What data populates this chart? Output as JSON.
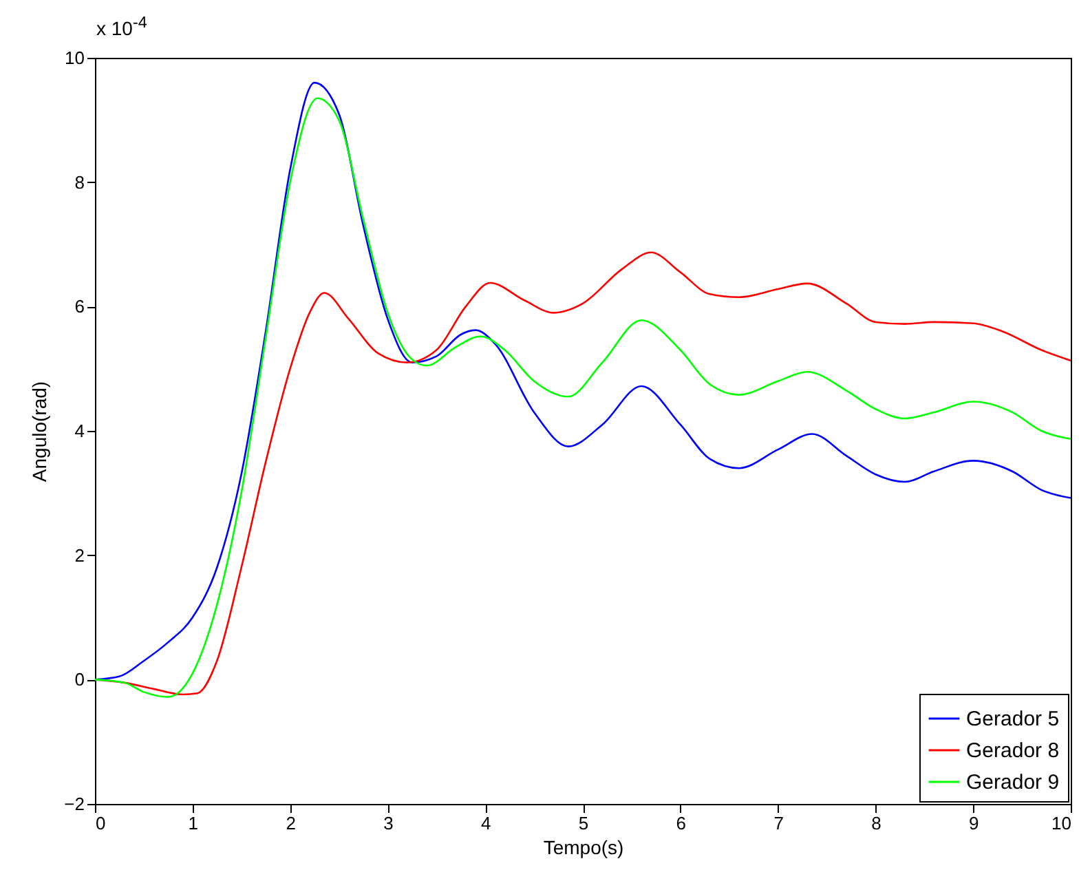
{
  "chart_data": {
    "type": "line",
    "xlabel": "Tempo(s)",
    "ylabel": "Angulo(rad)",
    "annotations": [
      "x 10$^{-4}$"
    ],
    "xlim": [
      0,
      10
    ],
    "xticks": [
      0,
      1,
      2,
      3,
      4,
      5,
      6,
      7,
      8,
      9,
      10
    ],
    "ylim": [
      -2,
      10
    ],
    "yticks": [
      -2,
      0,
      2,
      4,
      6,
      8,
      10
    ],
    "grid": false,
    "legend": "bottom right",
    "series": [
      {
        "name": "Gerador 5",
        "color": "#0000ff",
        "x": [
          0,
          0.25,
          0.5,
          0.75,
          1.0,
          1.25,
          1.5,
          1.75,
          2.0,
          2.25,
          2.5,
          2.75,
          3.0,
          3.25,
          3.5,
          3.75,
          3.9,
          4.1,
          4.5,
          4.85,
          5.2,
          5.6,
          6.0,
          6.3,
          6.6,
          7.0,
          7.35,
          7.7,
          8.0,
          8.3,
          8.6,
          9.0,
          9.4,
          9.7,
          10
        ],
        "values": [
          0,
          0.05,
          0.3,
          0.6,
          1.0,
          1.8,
          3.3,
          5.6,
          8.2,
          9.6,
          9.1,
          7.3,
          5.8,
          5.1,
          5.2,
          5.55,
          5.62,
          5.4,
          4.3,
          3.75,
          4.1,
          4.72,
          4.1,
          3.55,
          3.4,
          3.7,
          3.95,
          3.6,
          3.3,
          3.18,
          3.35,
          3.52,
          3.35,
          3.05,
          2.92
        ]
      },
      {
        "name": "Gerador 8",
        "color": "#ff0000",
        "x": [
          0,
          0.3,
          0.6,
          0.9,
          1.05,
          1.25,
          1.5,
          1.75,
          2.0,
          2.2,
          2.35,
          2.6,
          2.9,
          3.2,
          3.5,
          3.8,
          4.05,
          4.4,
          4.7,
          5.0,
          5.4,
          5.7,
          6.0,
          6.3,
          6.6,
          7.0,
          7.3,
          7.7,
          8.0,
          8.3,
          8.6,
          9.0,
          9.3,
          9.7,
          10
        ],
        "values": [
          0,
          -0.05,
          -0.15,
          -0.24,
          -0.22,
          0.3,
          1.8,
          3.5,
          5.0,
          5.9,
          6.22,
          5.8,
          5.25,
          5.1,
          5.3,
          6.0,
          6.38,
          6.1,
          5.9,
          6.05,
          6.6,
          6.87,
          6.55,
          6.2,
          6.15,
          6.28,
          6.37,
          6.05,
          5.75,
          5.72,
          5.75,
          5.73,
          5.6,
          5.3,
          5.13
        ]
      },
      {
        "name": "Gerador 9",
        "color": "#00ff00",
        "x": [
          0,
          0.3,
          0.5,
          0.75,
          1.0,
          1.25,
          1.5,
          1.75,
          2.0,
          2.28,
          2.5,
          2.75,
          3.0,
          3.25,
          3.4,
          3.7,
          3.95,
          4.2,
          4.5,
          4.85,
          5.2,
          5.6,
          6.0,
          6.3,
          6.6,
          7.0,
          7.3,
          7.7,
          8.0,
          8.3,
          8.6,
          9.0,
          9.4,
          9.7,
          10
        ],
        "values": [
          0,
          -0.05,
          -0.2,
          -0.28,
          0.1,
          1.2,
          3.0,
          5.5,
          8.0,
          9.35,
          9.0,
          7.4,
          5.9,
          5.15,
          5.05,
          5.35,
          5.52,
          5.3,
          4.8,
          4.55,
          5.1,
          5.78,
          5.3,
          4.75,
          4.58,
          4.8,
          4.95,
          4.65,
          4.35,
          4.2,
          4.3,
          4.47,
          4.3,
          4.0,
          3.87
        ]
      }
    ]
  }
}
